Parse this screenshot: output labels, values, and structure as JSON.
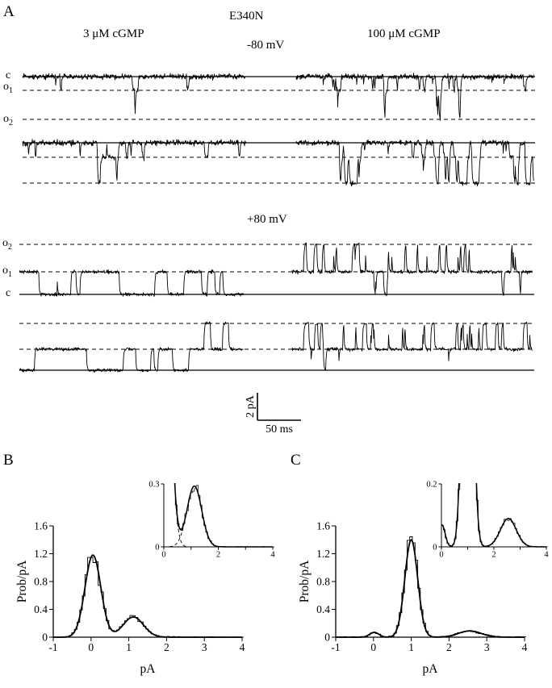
{
  "colors": {
    "ink": "#000000",
    "bg": "#ffffff"
  },
  "panel_a": {
    "label": "A",
    "title": "E340N",
    "left_col": "3 μM cGMP",
    "right_col": "100 μM cGMP",
    "neg_label": "-80 mV",
    "pos_label": "+80 mV",
    "scale_v": "2 pA",
    "scale_h": "50 ms",
    "level_labels": {
      "neg": [
        {
          "base": "c",
          "sub": ""
        },
        {
          "base": "o",
          "sub": "1"
        },
        {
          "base": "o",
          "sub": "2"
        }
      ],
      "pos": [
        {
          "base": "o",
          "sub": "2"
        },
        {
          "base": "o",
          "sub": "1"
        },
        {
          "base": "c",
          "sub": ""
        }
      ]
    },
    "rows": [
      {
        "x_line": [
          8,
          643
        ],
        "levels": {
          "c": 17,
          "o1": 34,
          "o2": 70
        },
        "segments": [
          {
            "x0": 8,
            "x1": 285,
            "seed": 101,
            "noise": 3.4,
            "pCO": 0.016,
            "pOC": 0.26,
            "pO12": 0.05,
            "pO21": 0.45,
            "start": 0
          },
          {
            "x0": 347,
            "x1": 642,
            "seed": 102,
            "noise": 3.4,
            "pCO": 0.045,
            "pOC": 0.22,
            "pO12": 0.05,
            "pO21": 0.4,
            "start": 0
          }
        ]
      },
      {
        "x_line": [
          8,
          643
        ],
        "levels": {
          "c": 16,
          "o1": 34,
          "o2": 66
        },
        "segments": [
          {
            "x0": 8,
            "x1": 285,
            "seed": 203,
            "noise": 3.4,
            "pCO": 0.02,
            "pOC": 0.14,
            "pO12": 0.02,
            "pO21": 0.3,
            "start": 0
          },
          {
            "x0": 347,
            "x1": 642,
            "seed": 204,
            "noise": 3.4,
            "pCO": 0.04,
            "pOC": 0.12,
            "pO12": 0.1,
            "pO21": 0.12,
            "start": 0
          }
        ]
      },
      {
        "x_line": [
          4,
          642
        ],
        "levels": {
          "c": 79,
          "o1": 51,
          "o2": 17
        },
        "segments": [
          {
            "x0": 4,
            "x1": 282,
            "seed": 305,
            "noise": 2.1,
            "pCO": 0.01,
            "pOC": 0.012,
            "pO12": 0.002,
            "pO21": 0.3,
            "start": 1
          },
          {
            "x0": 342,
            "x1": 640,
            "seed": 306,
            "noise": 2.1,
            "pCO": 0.25,
            "pOC": 0.012,
            "pO12": 0.03,
            "pO21": 0.35,
            "start": 1
          }
        ]
      },
      {
        "x_line": [
          4,
          642
        ],
        "levels": {
          "c": 74,
          "o1": 48,
          "o2": 16
        },
        "segments": [
          {
            "x0": 4,
            "x1": 282,
            "seed": 407,
            "noise": 2.1,
            "pCO": 0.012,
            "pOC": 0.02,
            "pO12": 0.004,
            "pO21": 0.3,
            "start": 0
          },
          {
            "x0": 342,
            "x1": 640,
            "seed": 408,
            "noise": 2.1,
            "pCO": 0.3,
            "pOC": 0.015,
            "pO12": 0.05,
            "pO21": 0.3,
            "start": 1
          }
        ]
      }
    ]
  },
  "chart_data": [
    {
      "id": "B",
      "panel_label": "B",
      "type": "histogram",
      "xlabel": "pA",
      "ylabel": "Prob/pA",
      "xlim": [
        -1,
        4
      ],
      "ylim": [
        0,
        1.6
      ],
      "xticks": [
        -1,
        0,
        1,
        2,
        3,
        4
      ],
      "xtick_labels": [
        "-1",
        "0",
        "1",
        "2",
        "3",
        "4"
      ],
      "yticks": [
        0,
        0.4,
        0.8,
        1.2,
        1.6
      ],
      "ytick_labels": [
        "0",
        "0.4",
        "0.8",
        "1.2",
        "1.6"
      ],
      "bin_width": 0.07,
      "hist_seed": 3,
      "components": [
        {
          "mu": 0.05,
          "sigma": 0.21,
          "amp": 1.18
        },
        {
          "mu": 1.12,
          "sigma": 0.27,
          "amp": 0.29
        }
      ],
      "inset": {
        "xlim": [
          0,
          4
        ],
        "ylim": [
          0,
          0.3
        ],
        "xticks": [
          0,
          1,
          2,
          3,
          4
        ],
        "xtick_labels": [
          "0",
          "",
          "2",
          "",
          "4"
        ],
        "yticks": [
          0,
          0.3
        ],
        "ytick_labels": [
          "0",
          "0.3"
        ]
      }
    },
    {
      "id": "C",
      "panel_label": "C",
      "type": "histogram",
      "xlabel": "pA",
      "ylabel": "Prob/pA",
      "xlim": [
        -1,
        4
      ],
      "ylim": [
        0,
        1.6
      ],
      "xticks": [
        -1,
        0,
        1,
        2,
        3,
        4
      ],
      "xtick_labels": [
        "-1",
        "0",
        "1",
        "2",
        "3",
        "4"
      ],
      "yticks": [
        0,
        0.4,
        0.8,
        1.2,
        1.6
      ],
      "ytick_labels": [
        "0",
        "0.4",
        "0.8",
        "1.2",
        "1.6"
      ],
      "bin_width": 0.07,
      "hist_seed": 9,
      "components": [
        {
          "mu": 0.02,
          "sigma": 0.12,
          "amp": 0.07
        },
        {
          "mu": 1.0,
          "sigma": 0.17,
          "amp": 1.4
        },
        {
          "mu": 2.55,
          "sigma": 0.3,
          "amp": 0.09
        }
      ],
      "inset": {
        "xlim": [
          0,
          4
        ],
        "ylim": [
          0,
          0.2
        ],
        "xticks": [
          0,
          1,
          2,
          3,
          4
        ],
        "xtick_labels": [
          "0",
          "",
          "2",
          "",
          "4"
        ],
        "yticks": [
          0,
          0.2
        ],
        "ytick_labels": [
          "0",
          "0.2"
        ]
      }
    }
  ]
}
